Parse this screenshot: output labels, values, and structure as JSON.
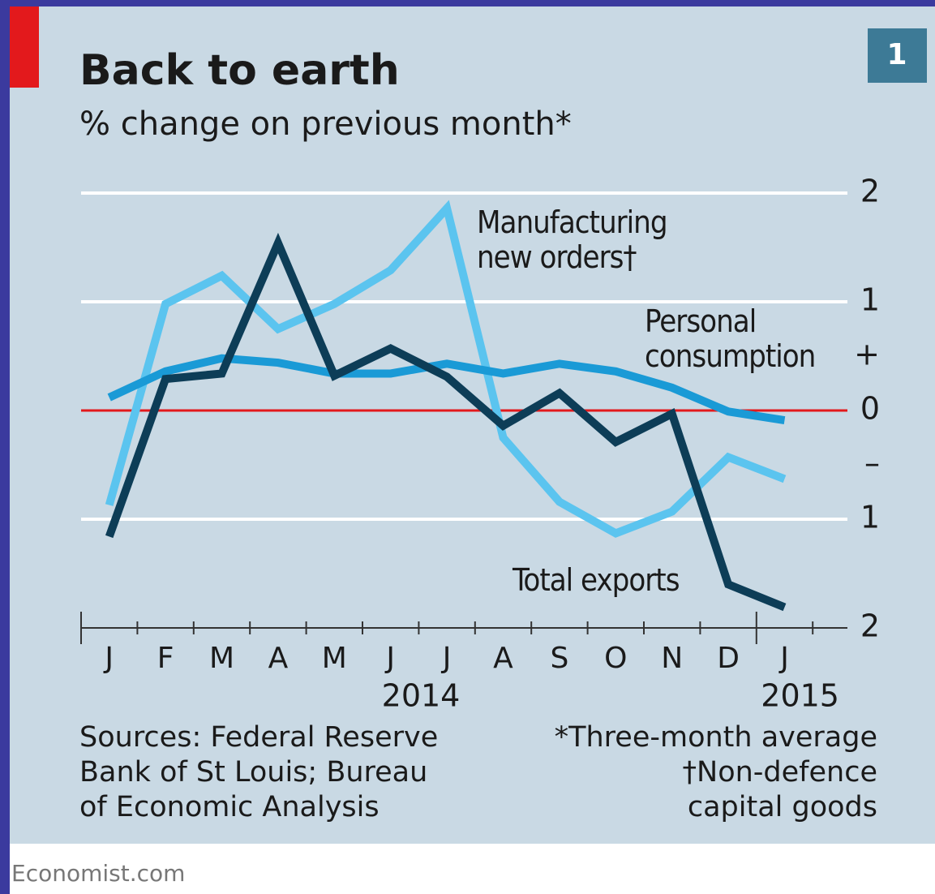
{
  "chart_data": {
    "type": "line",
    "title": "Back to earth",
    "subtitle": "% change on previous month*",
    "badge": "1",
    "categories": [
      "J",
      "F",
      "M",
      "A",
      "M",
      "J",
      "J",
      "A",
      "S",
      "O",
      "N",
      "D",
      "J"
    ],
    "year_labels": [
      "2014",
      "2015"
    ],
    "series": [
      {
        "name": "Manufacturing new orders†",
        "color": "#5bc4ef",
        "values": [
          -0.87,
          0.98,
          1.24,
          0.75,
          0.98,
          1.29,
          1.86,
          -0.25,
          -0.84,
          -1.13,
          -0.93,
          -0.43,
          -0.63
        ]
      },
      {
        "name": "Personal consumption",
        "color": "#1a9ad6",
        "values": [
          0.12,
          0.36,
          0.48,
          0.44,
          0.34,
          0.34,
          0.43,
          0.34,
          0.43,
          0.36,
          0.21,
          -0.01,
          -0.09
        ]
      },
      {
        "name": "Total exports",
        "color": "#0d3d57",
        "values": [
          -1.16,
          0.29,
          0.34,
          1.54,
          0.32,
          0.57,
          0.31,
          -0.14,
          0.16,
          -0.29,
          -0.03,
          -1.6,
          -1.81
        ]
      }
    ],
    "ylim": [
      -2,
      2
    ],
    "yticks": [
      2,
      1,
      0,
      {
        "value": -1,
        "label": "1"
      },
      {
        "value": -2,
        "label": "2"
      }
    ],
    "ysigns": [
      {
        "value": 0.5,
        "label": "+"
      },
      {
        "value": -0.5,
        "label": "–"
      }
    ],
    "grid": true,
    "sources": [
      "Sources: Federal Reserve",
      "Bank of St Louis; Bureau",
      "of Economic Analysis"
    ],
    "notes": [
      "*Three-month average",
      "†Non-defence",
      "capital goods"
    ],
    "footer": "Economist.com"
  }
}
